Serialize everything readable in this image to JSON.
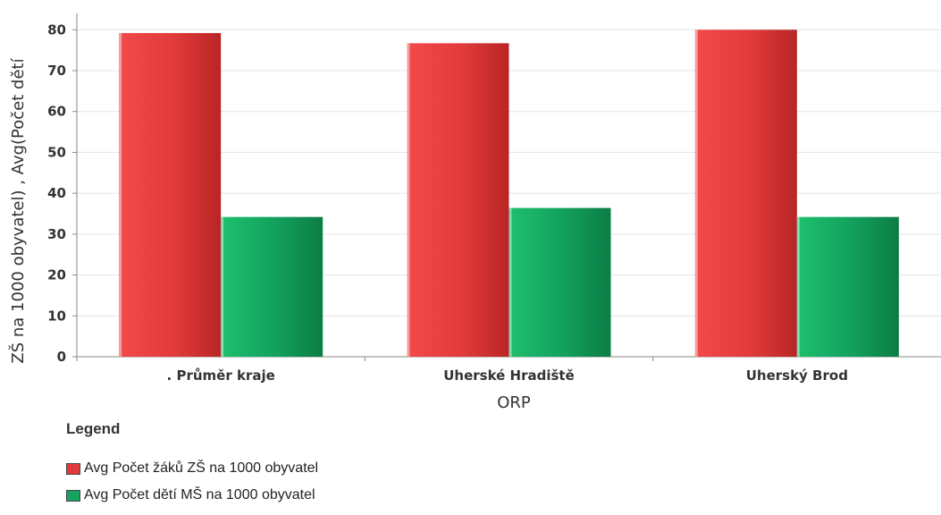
{
  "chart_data": {
    "type": "bar",
    "categories": [
      ". Průměr kraje",
      "Uherské Hradiště",
      "Uherský Brod"
    ],
    "series": [
      {
        "name": "Avg Počet žáků ZŠ na 1000 obyvatel",
        "values": [
          79.2,
          76.7,
          80.0
        ],
        "color": "#e23a3a"
      },
      {
        "name": "Avg Počet dětí MŠ na 1000 obyvatel",
        "values": [
          34.2,
          36.4,
          34.2
        ],
        "color": "#15a35f"
      }
    ],
    "xlabel": "ORP",
    "ylabel": "ZŠ na 1000 obyvatel) , Avg(Počet dětí",
    "ylim": [
      0,
      84
    ],
    "yticks": [
      0,
      10,
      20,
      30,
      40,
      50,
      60,
      70,
      80
    ],
    "grid": true,
    "legend_position": "bottom-left"
  },
  "legend": {
    "title": "Legend"
  }
}
